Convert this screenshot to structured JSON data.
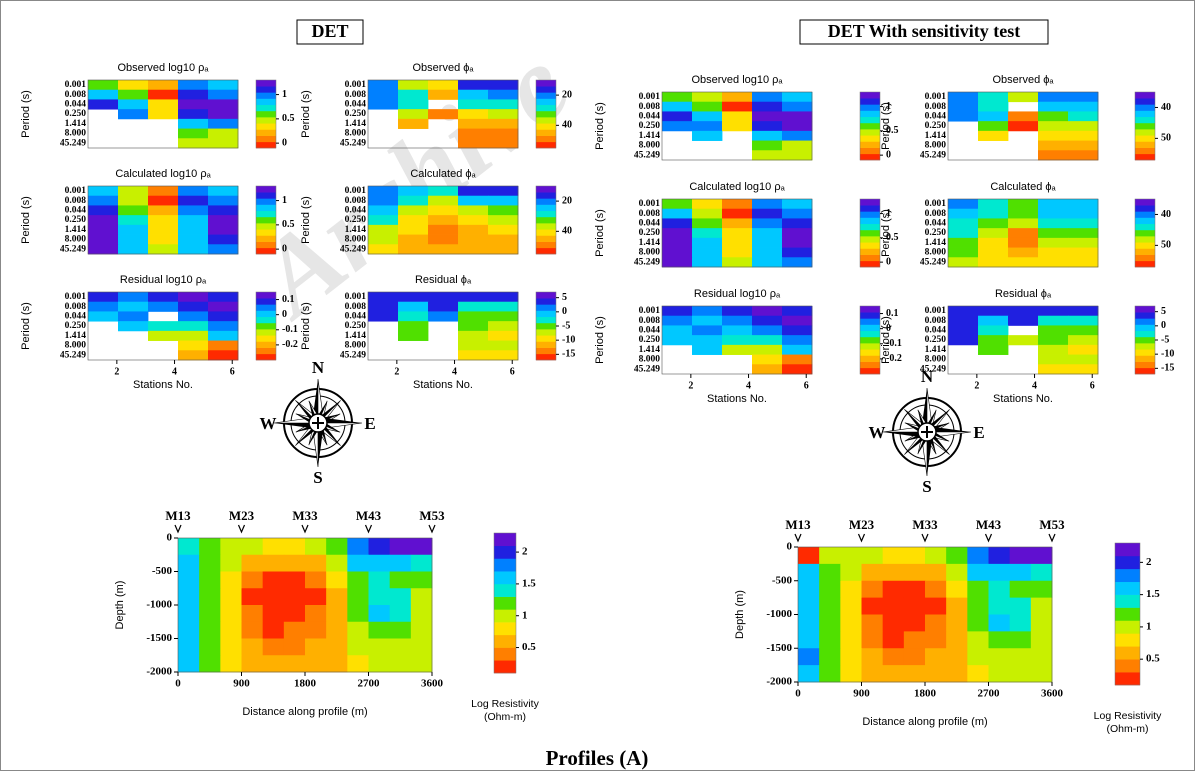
{
  "figure_title": "Profiles (A)",
  "group_titles": [
    "DET",
    "DET With sensitivity test"
  ],
  "compass": [
    "N",
    "E",
    "S",
    "W"
  ],
  "watermark": "Archive",
  "colormap": [
    "#ff2a00",
    "#ff7f00",
    "#ffb000",
    "#ffe000",
    "#c8f000",
    "#50e000",
    "#00e8d0",
    "#00c8ff",
    "#0080ff",
    "#2020e0",
    "#6010d0"
  ],
  "chart_data": [
    {
      "type": "heatmap",
      "title": "Observed log10 ρₐ",
      "y_label": "Period (s)",
      "y_categories": [
        "0.001",
        "0.008",
        "0.044",
        "0.250",
        "1.414",
        "8.000",
        "45.249"
      ],
      "values": [
        [
          0.6,
          0.4,
          0.2,
          1.0,
          0.9
        ],
        [
          0.8,
          0.6,
          0.0,
          1.1,
          1.0
        ],
        [
          1.1,
          0.8,
          0.3,
          1.2,
          1.2
        ],
        [
          null,
          1.0,
          0.4,
          1.1,
          1.2
        ],
        [
          null,
          null,
          null,
          0.9,
          1.0
        ],
        [
          null,
          null,
          null,
          0.6,
          0.5
        ],
        [
          null,
          null,
          null,
          0.5,
          0.5
        ]
      ],
      "zlim": [
        -0.1,
        1.3
      ],
      "zticks": [
        0,
        0.5,
        1
      ]
    },
    {
      "type": "heatmap",
      "title": "Observed ϕₐ",
      "y_label": "Period (s)",
      "y_categories": [
        "0.001",
        "0.008",
        "0.044",
        "0.250",
        "1.414",
        "8.000",
        "45.249"
      ],
      "values": [
        [
          20,
          35,
          40,
          15,
          15
        ],
        [
          20,
          30,
          45,
          25,
          20
        ],
        [
          22,
          28,
          null,
          30,
          30
        ],
        [
          null,
          38,
          50,
          40,
          38
        ],
        [
          null,
          45,
          null,
          45,
          45
        ],
        [
          null,
          null,
          null,
          48,
          48
        ],
        [
          null,
          null,
          null,
          50,
          50
        ]
      ],
      "zlim": [
        10,
        55
      ],
      "zticks": [
        20,
        40
      ],
      "reverse": true
    },
    {
      "type": "heatmap",
      "title": "Calculated log10 ρₐ",
      "y_label": "Period (s)",
      "y_categories": [
        "0.001",
        "0.008",
        "0.044",
        "0.250",
        "1.414",
        "8.000",
        "45.249"
      ],
      "values": [
        [
          0.9,
          0.5,
          0.1,
          1.0,
          0.9
        ],
        [
          1.0,
          0.5,
          0.0,
          1.1,
          1.0
        ],
        [
          1.1,
          0.6,
          0.2,
          1.0,
          1.1
        ],
        [
          1.2,
          0.7,
          0.3,
          0.9,
          1.2
        ],
        [
          1.3,
          0.8,
          0.4,
          0.9,
          1.2
        ],
        [
          1.3,
          0.8,
          0.4,
          0.8,
          1.1
        ],
        [
          1.3,
          0.8,
          0.5,
          0.8,
          1.0
        ]
      ],
      "zlim": [
        -0.1,
        1.3
      ],
      "zticks": [
        0,
        0.5,
        1
      ]
    },
    {
      "type": "heatmap",
      "title": "Calculated ϕₐ",
      "y_label": "Period (s)",
      "y_categories": [
        "0.001",
        "0.008",
        "0.044",
        "0.250",
        "1.414",
        "8.000",
        "45.249"
      ],
      "values": [
        [
          20,
          25,
          30,
          15,
          18
        ],
        [
          22,
          30,
          38,
          25,
          25
        ],
        [
          25,
          35,
          40,
          35,
          32
        ],
        [
          30,
          40,
          45,
          40,
          38
        ],
        [
          35,
          42,
          50,
          45,
          42
        ],
        [
          38,
          45,
          48,
          45,
          45
        ],
        [
          40,
          45,
          45,
          45,
          45
        ]
      ],
      "zlim": [
        10,
        55
      ],
      "zticks": [
        20,
        40
      ],
      "reverse": true
    },
    {
      "type": "heatmap",
      "title": "Residual log10 ρₐ",
      "y_label": "Period (s)",
      "y_categories": [
        "0.001",
        "0.008",
        "0.044",
        "0.250",
        "1.414",
        "8.000",
        "45.249"
      ],
      "values": [
        [
          0.1,
          0.05,
          0.1,
          0.12,
          0.1
        ],
        [
          0.05,
          0.0,
          0.05,
          0.1,
          0.12
        ],
        [
          0.0,
          0.05,
          null,
          0.05,
          0.1
        ],
        [
          null,
          0.0,
          -0.05,
          -0.05,
          0.05
        ],
        [
          null,
          null,
          -0.1,
          -0.1,
          0.0
        ],
        [
          null,
          null,
          null,
          -0.15,
          -0.25
        ],
        [
          null,
          null,
          null,
          -0.2,
          -0.28
        ]
      ],
      "zlim": [
        -0.3,
        0.15
      ],
      "zticks": [
        0.1,
        0,
        -0.1,
        -0.2
      ],
      "x_label": "Stations No.",
      "xlim": [
        1,
        6.2
      ],
      "xticks": [
        2,
        4,
        6
      ]
    },
    {
      "type": "heatmap",
      "title": "Residual ϕₐ",
      "y_label": "Period (s)",
      "y_categories": [
        "0.001",
        "0.008",
        "0.044",
        "0.250",
        "1.414",
        "8.000",
        "45.249"
      ],
      "values": [
        [
          3,
          3,
          3,
          3,
          3
        ],
        [
          3,
          0,
          3,
          -3,
          -2
        ],
        [
          3,
          -2,
          2,
          -5,
          -5
        ],
        [
          null,
          -4,
          null,
          -6,
          -8
        ],
        [
          null,
          -5,
          null,
          -8,
          -10
        ],
        [
          null,
          null,
          null,
          -8,
          -8
        ],
        [
          null,
          null,
          null,
          -10,
          -10
        ]
      ],
      "zlim": [
        -17,
        7
      ],
      "zticks": [
        5,
        0,
        -5,
        -10,
        -15
      ],
      "x_label": "Stations No.",
      "xlim": [
        1,
        6.2
      ],
      "xticks": [
        2,
        4,
        6
      ]
    },
    {
      "type": "heatmap",
      "y_label": "Depth (m)",
      "x_label": "Distance along profile (m)",
      "xlim": [
        0,
        3600
      ],
      "xticks": [
        0,
        900,
        1800,
        2700,
        3600
      ],
      "ylim": [
        -2000,
        0
      ],
      "yticks": [
        0,
        -500,
        -1000,
        -1500,
        -2000
      ],
      "stations": [
        {
          "label": "M13",
          "x": 0
        },
        {
          "label": "M23",
          "x": 900
        },
        {
          "label": "M33",
          "x": 1800
        },
        {
          "label": "M43",
          "x": 2700
        },
        {
          "label": "M53",
          "x": 3600
        }
      ],
      "values": [
        [
          1.3,
          1.1,
          1.0,
          0.9,
          0.8,
          0.8,
          0.9,
          1.2,
          1.8,
          2.0,
          2.1,
          2.2
        ],
        [
          1.5,
          1.2,
          0.9,
          0.6,
          0.5,
          0.5,
          0.6,
          1.0,
          1.5,
          1.6,
          1.5,
          1.4
        ],
        [
          1.6,
          1.2,
          0.8,
          0.3,
          0.2,
          0.2,
          0.3,
          0.7,
          1.2,
          1.3,
          1.2,
          1.1
        ],
        [
          1.5,
          1.1,
          0.7,
          0.2,
          0.1,
          0.1,
          0.2,
          0.6,
          1.1,
          1.4,
          1.3,
          1.0
        ],
        [
          1.5,
          1.1,
          0.7,
          0.3,
          0.1,
          0.1,
          0.3,
          0.6,
          1.1,
          1.5,
          1.4,
          1.0
        ],
        [
          1.6,
          1.1,
          0.7,
          0.4,
          0.2,
          0.3,
          0.4,
          0.6,
          1.0,
          1.2,
          1.1,
          0.9
        ],
        [
          1.5,
          1.1,
          0.7,
          0.5,
          0.4,
          0.4,
          0.5,
          0.6,
          0.9,
          1.0,
          0.9,
          0.9
        ],
        [
          1.5,
          1.1,
          0.8,
          0.6,
          0.5,
          0.5,
          0.5,
          0.6,
          0.8,
          0.9,
          0.9,
          0.9
        ]
      ],
      "zlim": [
        0.1,
        2.3
      ],
      "zticks": [
        0.5,
        1,
        1.5,
        2
      ],
      "colorbar_label": [
        "Log Resistivity",
        "(Ohm-m)"
      ]
    },
    {
      "type": "heatmap",
      "title": "Observed log10 ρₐ",
      "y_label": "Period (s)",
      "y_categories": [
        "0.001",
        "0.008",
        "0.044",
        "0.250",
        "1.414",
        "8.000",
        "45.249"
      ],
      "values": [
        [
          0.6,
          0.5,
          0.2,
          1.0,
          0.9
        ],
        [
          0.8,
          0.6,
          0.0,
          1.1,
          1.0
        ],
        [
          1.1,
          0.8,
          0.3,
          1.2,
          1.2
        ],
        [
          1.0,
          1.0,
          0.4,
          1.1,
          1.2
        ],
        [
          null,
          0.9,
          null,
          0.9,
          1.0
        ],
        [
          null,
          null,
          null,
          0.6,
          0.5
        ],
        [
          null,
          null,
          null,
          0.5,
          0.5
        ]
      ],
      "zlim": [
        -0.1,
        1.3
      ],
      "zticks": [
        0,
        0.5,
        1
      ]
    },
    {
      "type": "heatmap",
      "title": "Observed ϕₐ",
      "y_label": "Period (s)",
      "y_categories": [
        "0.001",
        "0.008",
        "0.044",
        "0.250",
        "1.414",
        "8.000",
        "45.249"
      ],
      "values": [
        [
          41,
          45,
          48,
          40,
          40
        ],
        [
          41,
          44,
          null,
          43,
          42
        ],
        [
          41,
          42,
          53,
          46,
          45
        ],
        [
          null,
          47,
          56,
          49,
          48
        ],
        [
          null,
          50,
          null,
          51,
          50
        ],
        [
          null,
          null,
          null,
          52,
          52
        ],
        [
          null,
          null,
          null,
          53,
          53
        ]
      ],
      "zlim": [
        35,
        57
      ],
      "zticks": [
        40,
        50
      ],
      "reverse": true
    },
    {
      "type": "heatmap",
      "title": "Calculated log10 ρₐ",
      "y_label": "Period (s)",
      "y_categories": [
        "0.001",
        "0.008",
        "0.044",
        "0.250",
        "1.414",
        "8.000",
        "45.249"
      ],
      "values": [
        [
          0.6,
          0.4,
          0.1,
          1.0,
          0.9
        ],
        [
          0.9,
          0.5,
          0.0,
          1.1,
          1.0
        ],
        [
          1.1,
          0.6,
          0.2,
          1.0,
          1.1
        ],
        [
          1.2,
          0.7,
          0.3,
          0.9,
          1.2
        ],
        [
          1.3,
          0.8,
          0.4,
          0.9,
          1.2
        ],
        [
          1.3,
          0.8,
          0.4,
          0.8,
          1.1
        ],
        [
          1.3,
          0.8,
          0.5,
          0.8,
          1.0
        ]
      ],
      "zlim": [
        -0.1,
        1.3
      ],
      "zticks": [
        0,
        0.5,
        1
      ]
    },
    {
      "type": "heatmap",
      "title": "Calculated ϕₐ",
      "y_label": "Period (s)",
      "y_categories": [
        "0.001",
        "0.008",
        "0.044",
        "0.250",
        "1.414",
        "8.000",
        "45.249"
      ],
      "values": [
        [
          41,
          44,
          46,
          42,
          42
        ],
        [
          42,
          45,
          47,
          43,
          43
        ],
        [
          44,
          47,
          49,
          45,
          45
        ],
        [
          45,
          49,
          53,
          47,
          47
        ],
        [
          46,
          50,
          55,
          49,
          48
        ],
        [
          47,
          50,
          52,
          50,
          50
        ],
        [
          48,
          50,
          50,
          50,
          50
        ]
      ],
      "zlim": [
        35,
        57
      ],
      "zticks": [
        40,
        50
      ],
      "reverse": true
    },
    {
      "type": "heatmap",
      "title": "Residual log10 ρₐ",
      "y_label": "Period (s)",
      "y_categories": [
        "0.001",
        "0.008",
        "0.044",
        "0.250",
        "1.414",
        "8.000",
        "45.249"
      ],
      "values": [
        [
          0.1,
          0.05,
          0.1,
          0.12,
          0.1
        ],
        [
          0.05,
          0.0,
          0.05,
          0.1,
          0.12
        ],
        [
          0.0,
          0.05,
          0.0,
          0.05,
          0.1
        ],
        [
          0.0,
          0.0,
          -0.05,
          -0.05,
          0.05
        ],
        [
          null,
          0.0,
          -0.1,
          -0.1,
          0.0
        ],
        [
          null,
          null,
          null,
          -0.15,
          -0.25
        ],
        [
          null,
          null,
          null,
          -0.2,
          -0.28
        ]
      ],
      "zlim": [
        -0.3,
        0.15
      ],
      "zticks": [
        0.1,
        0,
        -0.1,
        -0.2
      ],
      "x_label": "Stations No.",
      "xlim": [
        1,
        6.2
      ],
      "xticks": [
        2,
        4,
        6
      ]
    },
    {
      "type": "heatmap",
      "title": "Residual ϕₐ",
      "y_label": "Period (s)",
      "y_categories": [
        "0.001",
        "0.008",
        "0.044",
        "0.250",
        "1.414",
        "8.000",
        "45.249"
      ],
      "values": [
        [
          3,
          3,
          3,
          3,
          3
        ],
        [
          3,
          0,
          3,
          -3,
          -2
        ],
        [
          3,
          -2,
          null,
          -5,
          -5
        ],
        [
          3,
          -4,
          -8,
          -6,
          -8
        ],
        [
          null,
          -5,
          null,
          -8,
          -10
        ],
        [
          null,
          null,
          null,
          -8,
          -8
        ],
        [
          null,
          null,
          null,
          -10,
          -10
        ]
      ],
      "zlim": [
        -17,
        7
      ],
      "zticks": [
        5,
        0,
        -5,
        -10,
        -15
      ],
      "x_label": "Stations No.",
      "xlim": [
        1,
        6.2
      ],
      "xticks": [
        2,
        4,
        6
      ]
    },
    {
      "type": "heatmap",
      "y_label": "Depth (m)",
      "x_label": "Distance along profile (m)",
      "xlim": [
        0,
        3600
      ],
      "xticks": [
        0,
        900,
        1800,
        2700,
        3600
      ],
      "ylim": [
        -2000,
        0
      ],
      "yticks": [
        0,
        -500,
        -1000,
        -1500,
        -2000
      ],
      "stations": [
        {
          "label": "M13",
          "x": 0
        },
        {
          "label": "M23",
          "x": 900
        },
        {
          "label": "M33",
          "x": 1800
        },
        {
          "label": "M43",
          "x": 2700
        },
        {
          "label": "M53",
          "x": 3600
        }
      ],
      "values": [
        [
          0.1,
          1.0,
          1.0,
          0.9,
          0.8,
          0.8,
          0.9,
          1.2,
          1.8,
          2.0,
          2.1,
          2.2
        ],
        [
          1.5,
          1.2,
          0.9,
          0.6,
          0.5,
          0.5,
          0.6,
          1.0,
          1.5,
          1.6,
          1.5,
          1.4
        ],
        [
          1.6,
          1.2,
          0.8,
          0.3,
          0.2,
          0.2,
          0.3,
          0.7,
          1.2,
          1.3,
          1.2,
          1.1
        ],
        [
          1.5,
          1.1,
          0.7,
          0.2,
          0.1,
          0.1,
          0.2,
          0.6,
          1.1,
          1.4,
          1.3,
          1.0
        ],
        [
          1.5,
          1.1,
          0.7,
          0.3,
          0.1,
          0.1,
          0.3,
          0.6,
          1.1,
          1.5,
          1.4,
          1.0
        ],
        [
          1.6,
          1.1,
          0.7,
          0.4,
          0.2,
          0.3,
          0.4,
          0.6,
          1.0,
          1.2,
          1.1,
          0.9
        ],
        [
          1.7,
          1.1,
          0.7,
          0.5,
          0.3,
          0.4,
          0.5,
          0.6,
          0.9,
          1.0,
          0.9,
          0.9
        ],
        [
          1.5,
          1.1,
          0.8,
          0.6,
          0.5,
          0.5,
          0.5,
          0.6,
          0.8,
          0.9,
          0.9,
          0.9
        ]
      ],
      "zlim": [
        0.1,
        2.3
      ],
      "zticks": [
        0.5,
        1,
        1.5,
        2
      ],
      "colorbar_label": [
        "Log Resistivity",
        "(Ohm-m)"
      ]
    }
  ]
}
